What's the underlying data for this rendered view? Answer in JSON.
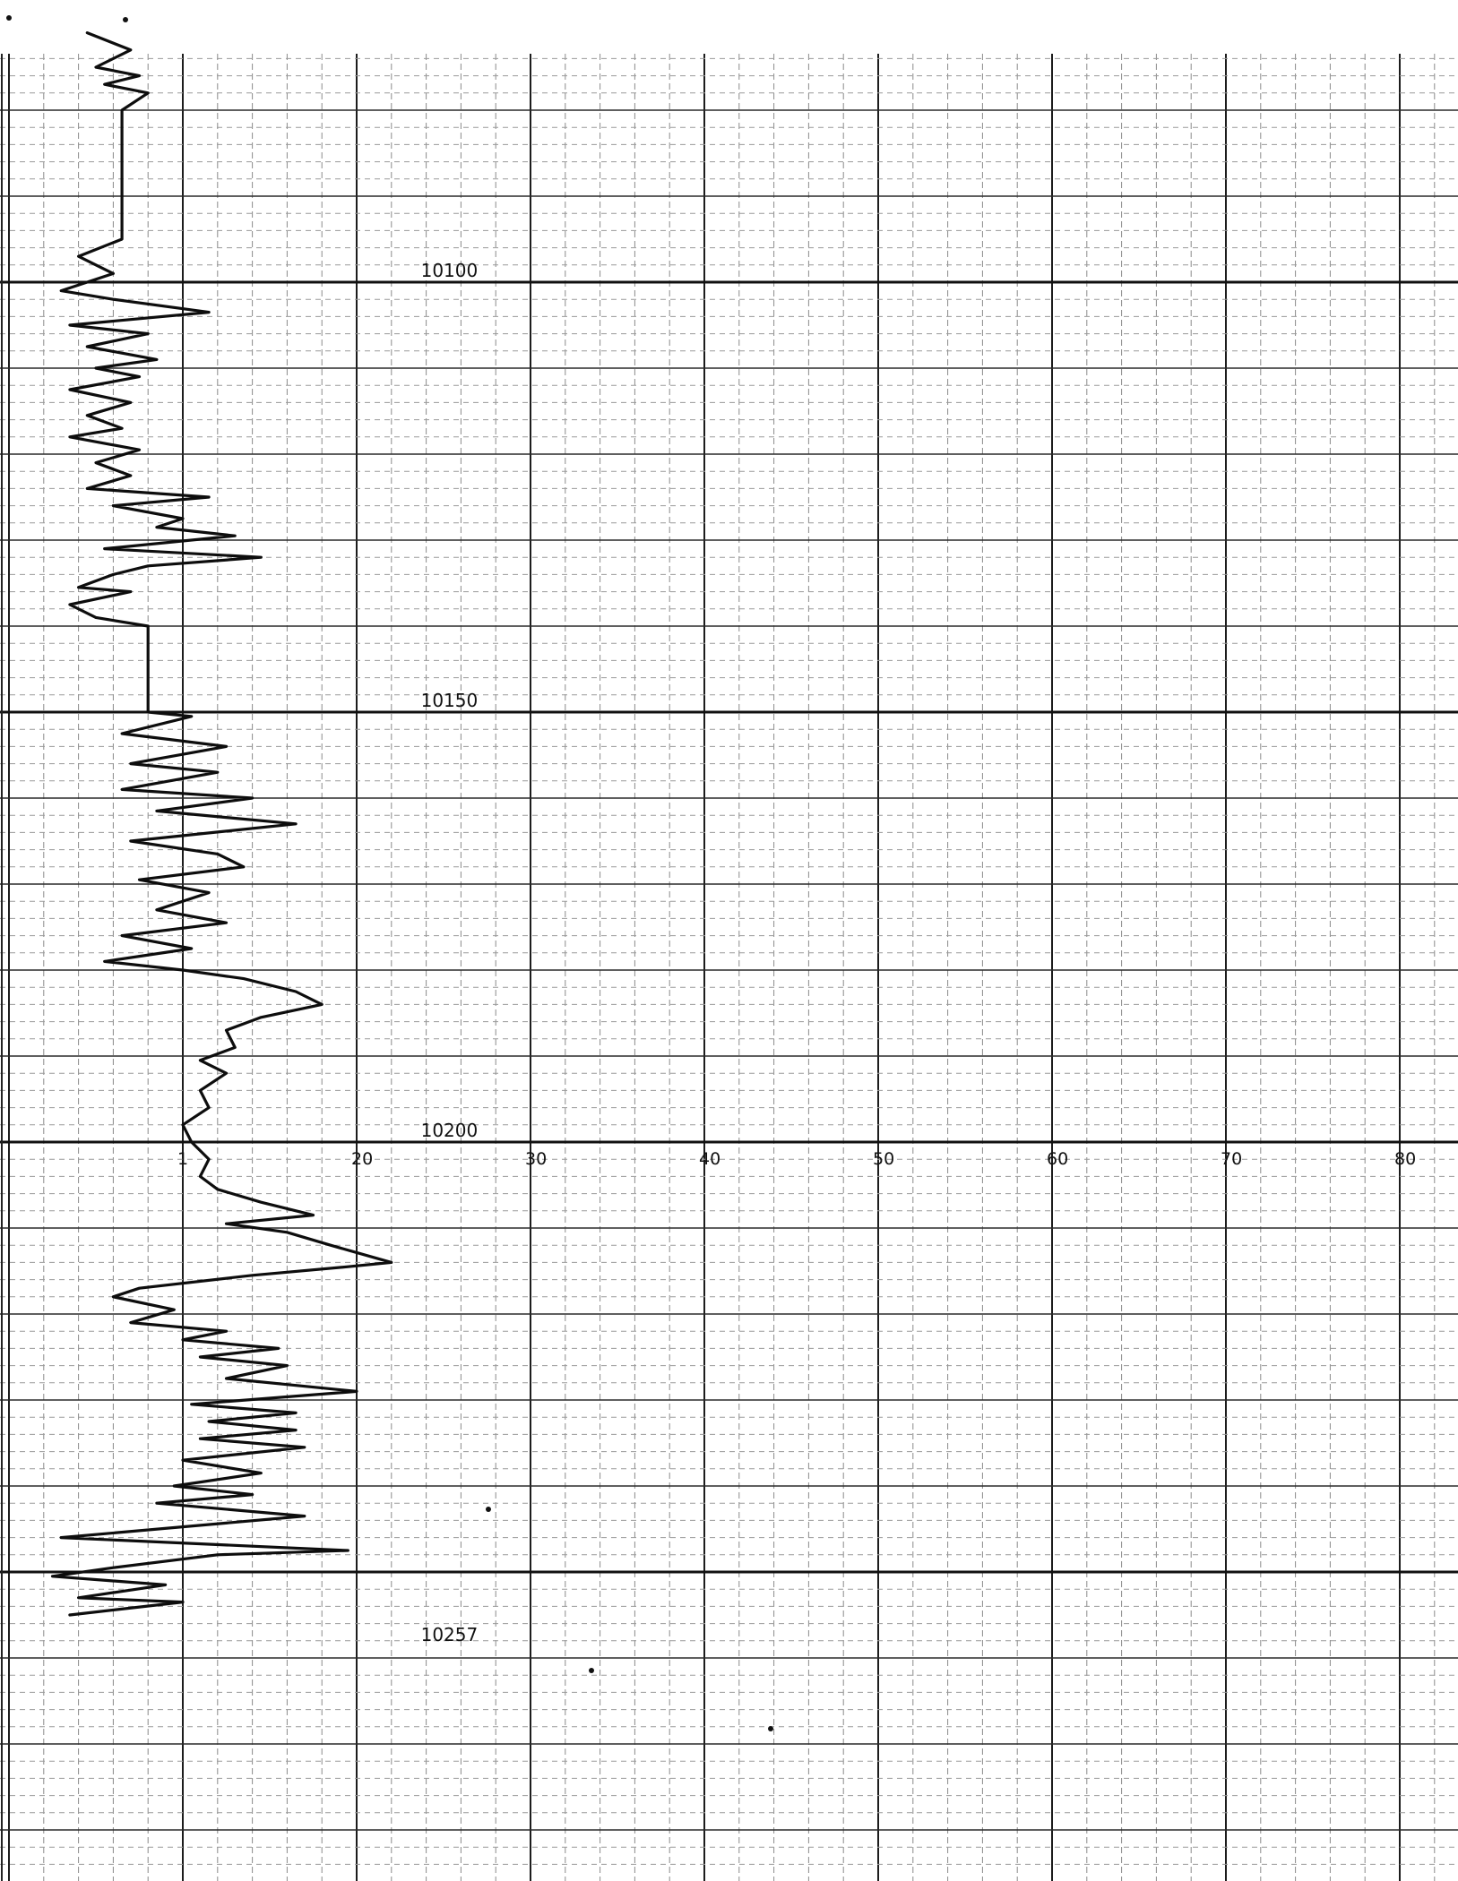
{
  "chart_data": {
    "type": "line",
    "title": "",
    "xlabel": "",
    "ylabel": "",
    "grid": true,
    "x_ticks": [
      "0",
      "10",
      "20",
      "30",
      "40",
      "50",
      "60",
      "70",
      "80"
    ],
    "x_ticks_display": [
      "",
      "1",
      "20",
      "30",
      "40",
      "50",
      "60",
      "70",
      "80"
    ],
    "xlim": [
      0,
      85
    ],
    "ylim": [
      10070,
      10295
    ],
    "y_axis": "depth (increasing downward)",
    "depth_labels": [
      "10100",
      "10150",
      "10200",
      "10257"
    ],
    "depth_label_values": [
      10100,
      10150,
      10200,
      10257
    ],
    "series": [
      {
        "values": [
          [
            4.5,
            10071
          ],
          [
            7,
            10073
          ],
          [
            5,
            10075
          ],
          [
            7.5,
            10076
          ],
          [
            5.5,
            10077
          ],
          [
            8,
            10078
          ],
          [
            6.5,
            10080
          ],
          [
            6.5,
            10088
          ],
          [
            6.5,
            10095
          ],
          [
            4,
            10097
          ],
          [
            6,
            10099
          ],
          [
            3,
            10101
          ],
          [
            6,
            10102
          ],
          [
            11.5,
            10103.5
          ],
          [
            3.5,
            10105
          ],
          [
            8,
            10106
          ],
          [
            4.5,
            10107.5
          ],
          [
            8.5,
            10109
          ],
          [
            5,
            10110
          ],
          [
            7.5,
            10111
          ],
          [
            3.5,
            10112.5
          ],
          [
            7,
            10114
          ],
          [
            4.5,
            10115.5
          ],
          [
            6.5,
            10117
          ],
          [
            3.5,
            10118
          ],
          [
            7.5,
            10119.5
          ],
          [
            5,
            10121
          ],
          [
            7,
            10122.5
          ],
          [
            4.5,
            10124
          ],
          [
            11.5,
            10125
          ],
          [
            6,
            10126
          ],
          [
            10,
            10127.5
          ],
          [
            8.5,
            10128.5
          ],
          [
            13,
            10129.5
          ],
          [
            5.5,
            10131
          ],
          [
            14.5,
            10132
          ],
          [
            8,
            10133
          ],
          [
            6,
            10134
          ],
          [
            4,
            10135.5
          ],
          [
            7,
            10136
          ],
          [
            3.5,
            10137.5
          ],
          [
            5,
            10139
          ],
          [
            8,
            10140
          ],
          [
            8,
            10145
          ],
          [
            8,
            10150
          ],
          [
            10.5,
            10150.5
          ],
          [
            6.5,
            10152.5
          ],
          [
            12.5,
            10154
          ],
          [
            7,
            10156
          ],
          [
            12,
            10157
          ],
          [
            6.5,
            10159
          ],
          [
            14,
            10160
          ],
          [
            8.5,
            10161.5
          ],
          [
            16.5,
            10163
          ],
          [
            7,
            10165
          ],
          [
            12,
            10166.5
          ],
          [
            13.5,
            10168
          ],
          [
            7.5,
            10169.5
          ],
          [
            11.5,
            10171
          ],
          [
            8.5,
            10173
          ],
          [
            12.5,
            10174.5
          ],
          [
            6.5,
            10176
          ],
          [
            10.5,
            10177.5
          ],
          [
            5.5,
            10179
          ],
          [
            10,
            10180
          ],
          [
            13.5,
            10181
          ],
          [
            16.5,
            10182.5
          ],
          [
            18,
            10184
          ],
          [
            14.5,
            10185.5
          ],
          [
            12.5,
            10187
          ],
          [
            13,
            10189
          ],
          [
            11,
            10190.5
          ],
          [
            12.5,
            10192
          ],
          [
            11,
            10194
          ],
          [
            11.5,
            10196
          ],
          [
            10,
            10198
          ],
          [
            10.5,
            10200
          ],
          [
            11.5,
            10202
          ],
          [
            11,
            10204
          ],
          [
            12,
            10205.5
          ],
          [
            14.5,
            10207
          ],
          [
            17.5,
            10208.5
          ],
          [
            12.5,
            10209.5
          ],
          [
            16,
            10210.5
          ],
          [
            18.5,
            10212
          ],
          [
            22,
            10214
          ],
          [
            19.5,
            10214.5
          ],
          [
            14,
            10215.5
          ],
          [
            7.5,
            10217
          ],
          [
            6,
            10218
          ],
          [
            9.5,
            10219.5
          ],
          [
            7,
            10221
          ],
          [
            12.5,
            10222
          ],
          [
            10,
            10223
          ],
          [
            15.5,
            10224
          ],
          [
            11,
            10225
          ],
          [
            16,
            10226
          ],
          [
            12.5,
            10227.5
          ],
          [
            20,
            10229
          ],
          [
            10.5,
            10230.5
          ],
          [
            16.5,
            10231.5
          ],
          [
            11.5,
            10232.5
          ],
          [
            16.5,
            10233.5
          ],
          [
            11,
            10234.5
          ],
          [
            17,
            10235.5
          ],
          [
            10,
            10237
          ],
          [
            14.5,
            10238.5
          ],
          [
            9.5,
            10240
          ],
          [
            14,
            10241
          ],
          [
            8.5,
            10242
          ],
          [
            17,
            10243.5
          ],
          [
            3,
            10246
          ],
          [
            19.5,
            10247.5
          ],
          [
            12,
            10248
          ],
          [
            6,
            10249.5
          ],
          [
            2.5,
            10250.5
          ],
          [
            9,
            10251.5
          ],
          [
            4,
            10253
          ],
          [
            10,
            10253.5
          ],
          [
            3.5,
            10255
          ]
        ]
      }
    ]
  }
}
